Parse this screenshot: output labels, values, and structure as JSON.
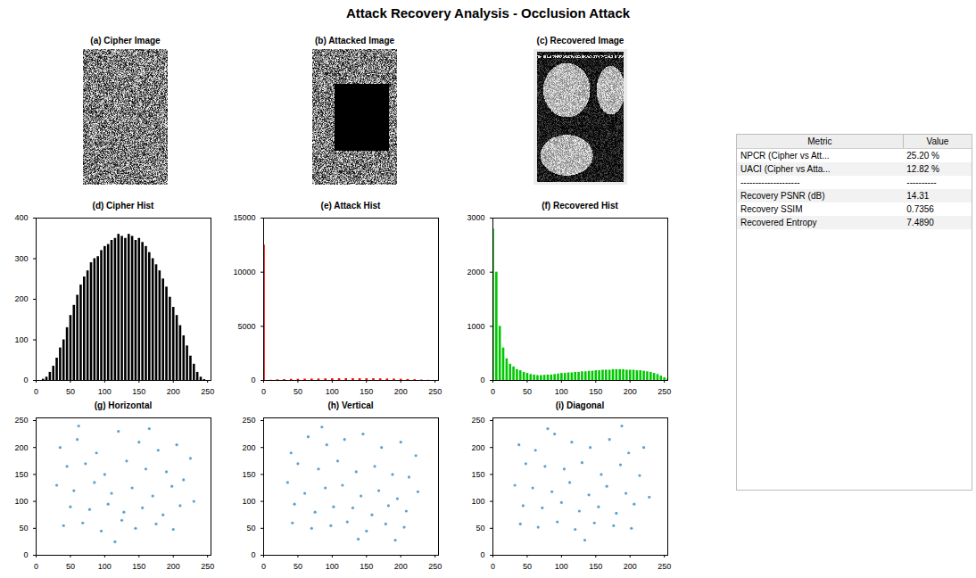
{
  "title": "Attack Recovery Analysis - Occlusion Attack",
  "images": [
    {
      "title": "(a) Cipher Image"
    },
    {
      "title": "(b) Attacked Image"
    },
    {
      "title": "(c) Recovered Image"
    }
  ],
  "chart_data": [
    {
      "type": "bar",
      "title": "(d) Cipher Hist",
      "color": "#000000",
      "x": [
        0,
        5,
        10,
        15,
        20,
        25,
        30,
        35,
        40,
        45,
        50,
        55,
        60,
        65,
        70,
        75,
        80,
        85,
        90,
        95,
        100,
        105,
        110,
        115,
        120,
        125,
        130,
        135,
        140,
        145,
        150,
        155,
        160,
        165,
        170,
        175,
        180,
        185,
        190,
        195,
        200,
        205,
        210,
        215,
        220,
        225,
        230,
        235,
        240,
        245,
        250,
        255
      ],
      "values": [
        0,
        0,
        3,
        8,
        20,
        35,
        55,
        80,
        100,
        130,
        160,
        185,
        210,
        235,
        255,
        270,
        290,
        300,
        305,
        320,
        330,
        335,
        345,
        350,
        360,
        355,
        350,
        360,
        355,
        345,
        350,
        340,
        330,
        315,
        300,
        285,
        270,
        250,
        230,
        205,
        180,
        160,
        135,
        110,
        85,
        60,
        40,
        20,
        8,
        2,
        0,
        0
      ],
      "xlim": [
        0,
        255
      ],
      "xticks": [
        0,
        50,
        100,
        150,
        200,
        250
      ],
      "ylim": [
        0,
        400
      ],
      "yticks": [
        0,
        100,
        200,
        300,
        400
      ]
    },
    {
      "type": "bar",
      "title": "(e) Attack Hist",
      "color": "#ff0000",
      "x": [
        0,
        10,
        20,
        30,
        40,
        50,
        60,
        70,
        80,
        90,
        100,
        110,
        120,
        130,
        140,
        150,
        160,
        170,
        180,
        190,
        200,
        210,
        220,
        230,
        240,
        250
      ],
      "values": [
        12500,
        20,
        60,
        80,
        100,
        110,
        120,
        130,
        140,
        150,
        160,
        160,
        170,
        170,
        165,
        160,
        160,
        150,
        140,
        130,
        110,
        90,
        70,
        40,
        15,
        0
      ],
      "xlim": [
        0,
        255
      ],
      "xticks": [
        0,
        50,
        100,
        150,
        200,
        250
      ],
      "ylim": [
        0,
        15000
      ],
      "yticks": [
        0,
        5000,
        10000,
        15000
      ]
    },
    {
      "type": "bar",
      "title": "(f) Recovered Hist",
      "color": "#00c800",
      "x": [
        0,
        5,
        10,
        15,
        20,
        25,
        30,
        35,
        40,
        45,
        50,
        55,
        60,
        65,
        70,
        75,
        80,
        85,
        90,
        95,
        100,
        105,
        110,
        115,
        120,
        125,
        130,
        135,
        140,
        145,
        150,
        155,
        160,
        165,
        170,
        175,
        180,
        185,
        190,
        195,
        200,
        205,
        210,
        215,
        220,
        225,
        230,
        235,
        240,
        245,
        250,
        255
      ],
      "values": [
        2800,
        2000,
        1000,
        600,
        400,
        300,
        250,
        200,
        180,
        150,
        130,
        110,
        100,
        90,
        90,
        95,
        100,
        100,
        110,
        120,
        130,
        130,
        140,
        140,
        150,
        150,
        160,
        160,
        170,
        170,
        180,
        180,
        190,
        190,
        190,
        200,
        200,
        200,
        200,
        190,
        190,
        190,
        180,
        180,
        170,
        160,
        150,
        130,
        110,
        80,
        50,
        30
      ],
      "xlim": [
        0,
        255
      ],
      "xticks": [
        0,
        50,
        100,
        150,
        200,
        250
      ],
      "ylim": [
        0,
        3000
      ],
      "yticks": [
        0,
        1000,
        2000,
        3000
      ]
    },
    {
      "type": "scatter",
      "title": "(g) Horizontal",
      "color": "#0072bd",
      "marker": "dot",
      "x": [
        35,
        60,
        88,
        120,
        150,
        178,
        205,
        225,
        45,
        72,
        100,
        132,
        160,
        190,
        215,
        30,
        55,
        85,
        110,
        140,
        170,
        198,
        230,
        50,
        78,
        105,
        128,
        155,
        185,
        210,
        40,
        68,
        95,
        125,
        145,
        175,
        200,
        62,
        115,
        165
      ],
      "values": [
        200,
        215,
        190,
        230,
        210,
        195,
        205,
        180,
        165,
        170,
        150,
        175,
        160,
        155,
        140,
        130,
        120,
        135,
        115,
        125,
        110,
        128,
        100,
        90,
        85,
        95,
        80,
        88,
        75,
        92,
        55,
        60,
        45,
        65,
        50,
        58,
        48,
        240,
        25,
        235
      ],
      "xlim": [
        0,
        255
      ],
      "xticks": [
        0,
        50,
        100,
        150,
        200,
        250
      ],
      "ylim": [
        0,
        255
      ],
      "yticks": [
        0,
        50,
        100,
        150,
        200,
        250
      ]
    },
    {
      "type": "scatter",
      "title": "(h) Vertical",
      "color": "#0072bd",
      "marker": "dot",
      "x": [
        40,
        65,
        92,
        118,
        145,
        172,
        200,
        222,
        50,
        80,
        108,
        135,
        162,
        188,
        212,
        35,
        60,
        90,
        115,
        142,
        168,
        195,
        225,
        45,
        75,
        102,
        130,
        158,
        182,
        208,
        42,
        70,
        98,
        122,
        150,
        178,
        205,
        85,
        138,
        192
      ],
      "values": [
        190,
        220,
        205,
        215,
        225,
        200,
        210,
        185,
        170,
        160,
        175,
        155,
        165,
        150,
        145,
        135,
        115,
        125,
        130,
        110,
        120,
        105,
        118,
        95,
        80,
        90,
        88,
        75,
        92,
        82,
        60,
        50,
        55,
        62,
        45,
        58,
        52,
        238,
        30,
        28
      ],
      "xlim": [
        0,
        255
      ],
      "xticks": [
        0,
        50,
        100,
        150,
        200,
        250
      ],
      "ylim": [
        0,
        255
      ],
      "yticks": [
        0,
        50,
        100,
        150,
        200,
        250
      ]
    },
    {
      "type": "scatter",
      "title": "(i) Diagonal",
      "color": "#0072bd",
      "marker": "dot",
      "x": [
        38,
        62,
        90,
        115,
        142,
        170,
        198,
        220,
        48,
        76,
        104,
        130,
        158,
        186,
        214,
        32,
        58,
        86,
        112,
        140,
        166,
        194,
        228,
        44,
        72,
        100,
        126,
        154,
        180,
        206,
        40,
        66,
        94,
        120,
        148,
        176,
        202,
        80,
        134,
        188
      ],
      "values": [
        205,
        195,
        225,
        210,
        200,
        215,
        190,
        200,
        170,
        165,
        160,
        172,
        150,
        168,
        148,
        130,
        125,
        118,
        135,
        112,
        128,
        115,
        108,
        92,
        88,
        98,
        82,
        90,
        78,
        95,
        58,
        52,
        62,
        48,
        60,
        55,
        50,
        235,
        28,
        240
      ],
      "xlim": [
        0,
        255
      ],
      "xticks": [
        0,
        50,
        100,
        150,
        200,
        250
      ],
      "ylim": [
        0,
        255
      ],
      "yticks": [
        0,
        50,
        100,
        150,
        200,
        250
      ]
    }
  ],
  "table": {
    "header": [
      "Metric",
      "Value"
    ],
    "rows": [
      [
        "NPCR (Cipher vs Att...",
        "25.20 %"
      ],
      [
        "UACI (Cipher vs Atta...",
        "12.82 %"
      ],
      [
        "--------------------",
        "----------"
      ],
      [
        "Recovery PSNR (dB)",
        "14.31"
      ],
      [
        "Recovery SSIM",
        "0.7356"
      ],
      [
        "Recovered Entropy",
        "7.4890"
      ]
    ]
  }
}
